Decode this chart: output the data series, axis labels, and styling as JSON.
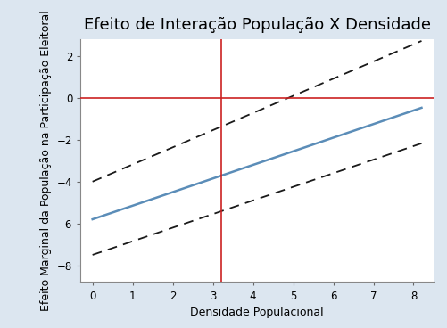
{
  "title": "Efeito de Interação População X Densidade",
  "xlabel": "Densidade Populacional",
  "ylabel": "Efeito Marginal da População na Participação Eleitoral",
  "xlim": [
    -0.3,
    8.5
  ],
  "ylim": [
    -8.8,
    2.8
  ],
  "xticks": [
    0,
    1,
    2,
    3,
    4,
    5,
    6,
    7,
    8
  ],
  "yticks": [
    -8,
    -6,
    -4,
    -2,
    0,
    2
  ],
  "x_start": 0.0,
  "x_end": 8.2,
  "main_line": {
    "intercept": -5.8,
    "slope": 0.65
  },
  "upper_ci": {
    "intercept": -4.0,
    "slope": 0.82
  },
  "lower_ci": {
    "intercept": -7.5,
    "slope": 0.65
  },
  "hline_y": 0,
  "vline_x": 3.2,
  "main_color": "#5b8db8",
  "ci_color": "#1a1a1a",
  "hline_color": "#cc2222",
  "vline_color": "#cc2222",
  "plot_bg_color": "#ffffff",
  "fig_bg_color": "#dce6f0",
  "grid_color": "#ffffff",
  "title_fontsize": 13,
  "label_fontsize": 9,
  "tick_fontsize": 8.5
}
